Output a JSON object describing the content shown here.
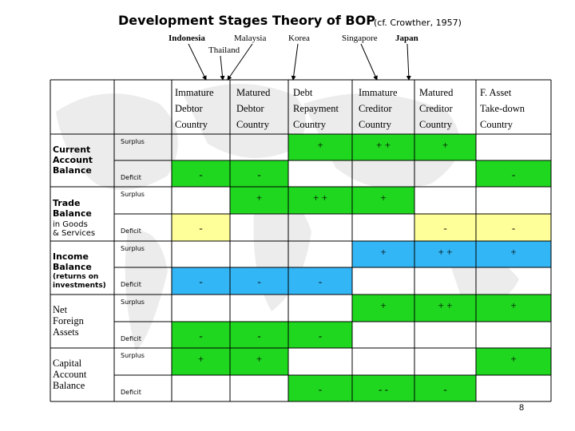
{
  "title": "Development Stages Theory of BOP",
  "title_note": "(cf. Crowther, 1957)",
  "countries": {
    "indonesia": "Indonesia",
    "malaysia": "Malaysia",
    "thailand": "Thailand",
    "korea": "Korea",
    "singapore": "Singapore",
    "japan": "Japan"
  },
  "columns": [
    {
      "label": "Immature\nDebtor\nCountry"
    },
    {
      "label": "Matured\nDebtor\nCountry"
    },
    {
      "label": "Debt\nRepayment\nCountry"
    },
    {
      "label": "Immature\nCreditor\nCountry"
    },
    {
      "label": "Matured\nCreditor\nCountry"
    },
    {
      "label": "F. Asset\nTake-down\nCountry"
    }
  ],
  "rows": [
    {
      "label": "Current\nAccount\nBalance",
      "sub": ""
    },
    {
      "label": "Trade\nBalance",
      "sub": "in Goods\n& Services"
    },
    {
      "label": "Income\nBalance",
      "sub": "(returns on\ninvestments)"
    },
    {
      "label": "Net\nForeign\nAssets",
      "sub": ""
    },
    {
      "label": "Capital\nAccount\nBalance",
      "sub": ""
    }
  ],
  "kinds": {
    "surplus": "Surplus",
    "deficit": "Deficit"
  },
  "cells": {
    "r0s": [
      "",
      "",
      "+",
      "+ +",
      "+",
      ""
    ],
    "r0d": [
      "-",
      "-",
      "",
      "",
      "",
      "-"
    ],
    "r1s": [
      "",
      "+",
      "+ +",
      "+",
      "",
      ""
    ],
    "r1d": [
      "-",
      "",
      "",
      "",
      "-",
      "-"
    ],
    "r2s": [
      "",
      "",
      "",
      "+",
      "+ +",
      "+"
    ],
    "r2d": [
      "-",
      "-",
      "-",
      "",
      "",
      ""
    ],
    "r3s": [
      "",
      "",
      "",
      "+",
      "+ +",
      "+"
    ],
    "r3d": [
      "-",
      "-",
      "-",
      "",
      "",
      ""
    ],
    "r4s": [
      "+",
      "+",
      "",
      "",
      "",
      "+"
    ],
    "r4d": [
      "",
      "",
      "-",
      "- -",
      "-",
      ""
    ]
  },
  "colors": {
    "green": "#1fd71f",
    "yellow": "#ffff99",
    "blue": "#33b6f5"
  },
  "page_number": "8"
}
